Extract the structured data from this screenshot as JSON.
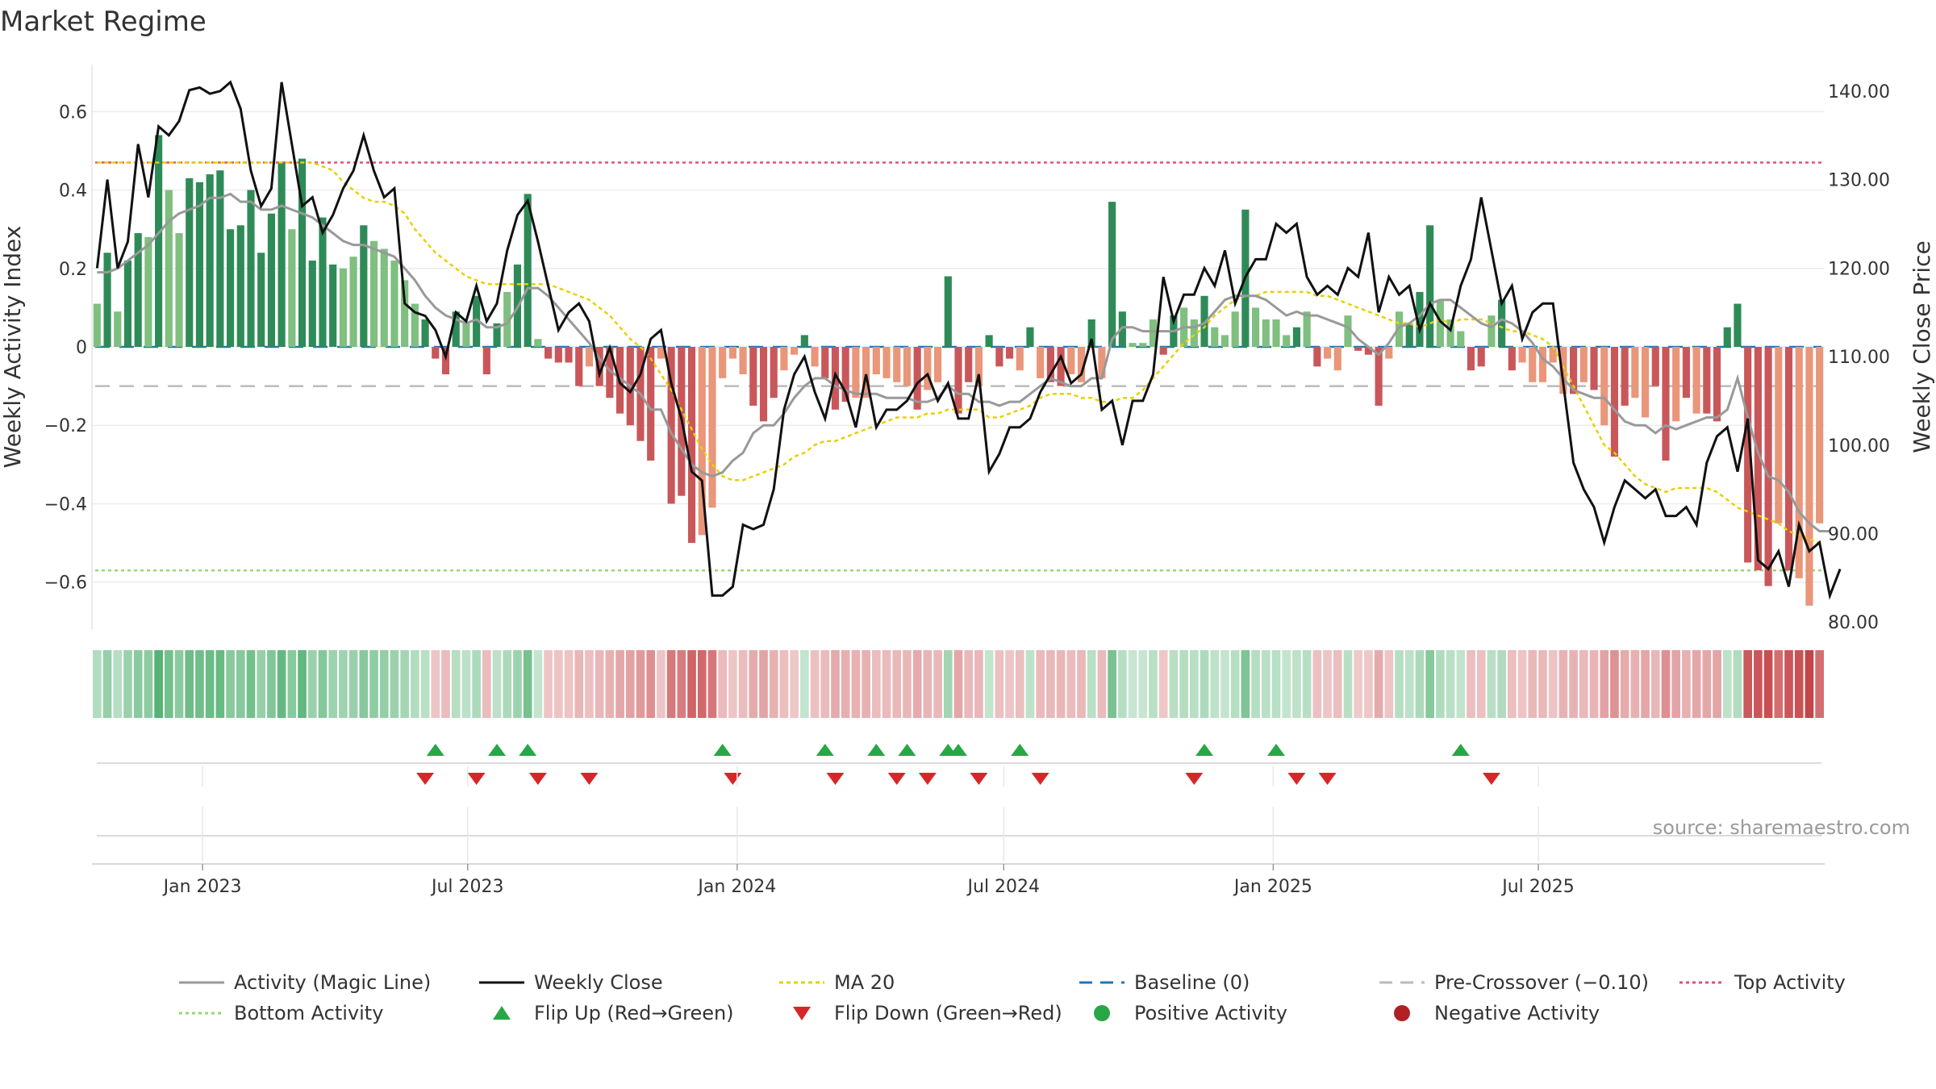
{
  "title": "Market Regime",
  "source_text": "source: sharemaestro.com",
  "left_axis_label": "Weekly Activity Index",
  "right_axis_label": "Weekly Close Price",
  "left_ticks": [
    "0.6",
    "0.4",
    "0.2",
    "0",
    "−0.2",
    "−0.4",
    "−0.6"
  ],
  "right_ticks": [
    "140.00",
    "130.00",
    "120.00",
    "110.00",
    "100.00",
    "90.00",
    "80.00"
  ],
  "x_ticks": [
    "Jan 2023",
    "Jul 2023",
    "Jan 2024",
    "Jul 2024",
    "Jan 2025",
    "Jul 2025"
  ],
  "legend": [
    {
      "label": "Activity (Magic Line)",
      "icon": "gray-line"
    },
    {
      "label": "Weekly Close",
      "icon": "black-line"
    },
    {
      "label": "MA 20",
      "icon": "yellow-dotted-line"
    },
    {
      "label": "Baseline (0)",
      "icon": "blue-dashed-line"
    },
    {
      "label": "Pre-Crossover (−0.10)",
      "icon": "gray-dashed-line"
    },
    {
      "label": "Top Activity",
      "icon": "pink-dotted-line"
    },
    {
      "label": "Bottom Activity",
      "icon": "green-dotted-line"
    },
    {
      "label": "Flip Up (Red→Green)",
      "icon": "green-triangle-up"
    },
    {
      "label": "Flip Down (Green→Red)",
      "icon": "red-triangle-down"
    },
    {
      "label": "Positive Activity",
      "icon": "green-dot"
    },
    {
      "label": "Negative Activity",
      "icon": "red-dot"
    }
  ],
  "chart_data": {
    "type": "bar",
    "title": "Market Regime",
    "xlabel": "",
    "ylabel": "Weekly Activity Index",
    "y2label": "Weekly Close Price",
    "x_start": "2022-10-21",
    "x_step_days": 7,
    "ylim": [
      -0.72,
      0.72
    ],
    "y2lim": [
      79.2,
      143.0
    ],
    "reference_lines": {
      "baseline": 0,
      "pre_crossover": -0.1,
      "top_activity": 0.47,
      "bottom_activity": -0.57
    },
    "colors": {
      "pos_dark": "#2e8b57",
      "pos_light": "#7fbf7f",
      "neg_dark": "#c9575a",
      "neg_light": "#e9967a",
      "magic": "#999999",
      "close": "#111111",
      "ma20": "#e8d000",
      "baseline": "#1f77b4",
      "pre": "#bbbbbb",
      "top": "#e0507a",
      "bottom": "#9bd672"
    },
    "activity": [
      0.11,
      0.24,
      0.09,
      0.22,
      0.29,
      0.28,
      0.54,
      0.4,
      0.29,
      0.43,
      0.42,
      0.44,
      0.45,
      0.3,
      0.31,
      0.4,
      0.24,
      0.34,
      0.47,
      0.3,
      0.48,
      0.22,
      0.33,
      0.21,
      0.2,
      0.23,
      0.31,
      0.27,
      0.25,
      0.22,
      0.17,
      0.11,
      0.07,
      -0.03,
      -0.07,
      0.09,
      0.06,
      0.13,
      -0.07,
      0.06,
      0.14,
      0.21,
      0.39,
      0.02,
      -0.03,
      -0.04,
      -0.04,
      -0.1,
      -0.05,
      -0.1,
      -0.13,
      -0.17,
      -0.2,
      -0.24,
      -0.29,
      -0.03,
      -0.4,
      -0.38,
      -0.5,
      -0.48,
      -0.41,
      -0.08,
      -0.03,
      -0.07,
      -0.15,
      -0.19,
      -0.13,
      -0.06,
      -0.02,
      0.03,
      -0.05,
      -0.08,
      -0.16,
      -0.14,
      -0.13,
      -0.13,
      -0.07,
      -0.08,
      -0.09,
      -0.1,
      -0.16,
      -0.11,
      -0.09,
      0.18,
      -0.17,
      -0.09,
      -0.1,
      0.03,
      -0.05,
      -0.03,
      -0.06,
      0.05,
      -0.08,
      -0.09,
      -0.1,
      -0.07,
      -0.09,
      0.07,
      -0.08,
      0.37,
      0.09,
      0.01,
      0.01,
      0.07,
      -0.02,
      0.08,
      0.1,
      0.07,
      0.13,
      0.05,
      0.03,
      0.09,
      0.35,
      0.1,
      0.07,
      0.07,
      0.03,
      0.05,
      0.09,
      -0.05,
      -0.03,
      -0.06,
      0.08,
      -0.01,
      -0.02,
      -0.15,
      -0.03,
      0.09,
      0.06,
      0.14,
      0.31,
      0.12,
      0.07,
      0.04,
      -0.06,
      -0.05,
      0.08,
      0.12,
      -0.06,
      -0.04,
      -0.09,
      -0.09,
      -0.04,
      -0.12,
      -0.12,
      -0.09,
      -0.11,
      -0.2,
      -0.28,
      -0.15,
      -0.13,
      -0.18,
      -0.1,
      -0.29,
      -0.19,
      -0.13,
      -0.17,
      -0.17,
      -0.19,
      0.05,
      0.11,
      -0.55,
      -0.57,
      -0.61,
      -0.45,
      -0.57,
      -0.59,
      -0.66,
      -0.45
    ],
    "activity_strong": [
      0,
      1,
      0,
      1,
      1,
      0,
      1,
      0,
      0,
      1,
      1,
      1,
      1,
      1,
      1,
      1,
      1,
      1,
      1,
      0,
      1,
      1,
      1,
      1,
      0,
      0,
      1,
      0,
      0,
      0,
      0,
      0,
      1,
      1,
      1,
      1,
      0,
      1,
      1,
      1,
      0,
      1,
      1,
      0,
      1,
      1,
      1,
      1,
      0,
      1,
      1,
      1,
      1,
      1,
      1,
      0,
      1,
      1,
      1,
      0,
      0,
      0,
      0,
      0,
      1,
      1,
      1,
      0,
      0,
      1,
      0,
      1,
      1,
      1,
      0,
      0,
      0,
      0,
      0,
      0,
      1,
      0,
      0,
      1,
      1,
      1,
      0,
      1,
      1,
      1,
      0,
      1,
      0,
      1,
      1,
      0,
      0,
      1,
      0,
      1,
      1,
      0,
      0,
      0,
      1,
      1,
      0,
      0,
      1,
      0,
      0,
      0,
      1,
      0,
      0,
      0,
      0,
      1,
      0,
      1,
      0,
      0,
      0,
      1,
      1,
      1,
      0,
      0,
      1,
      1,
      1,
      0,
      0,
      0,
      1,
      1,
      0,
      1,
      1,
      0,
      0,
      0,
      0,
      0,
      1,
      0,
      1,
      0,
      1,
      1,
      0,
      0,
      1,
      1,
      0,
      1,
      0,
      1,
      1,
      1,
      1,
      1,
      1,
      1,
      0,
      1,
      0,
      0
    ],
    "weekly_close": [
      120.0,
      130.0,
      120.0,
      123.0,
      134.0,
      128.0,
      136.0,
      135.0,
      136.6,
      140.1,
      140.4,
      139.7,
      140.0,
      141.0,
      138.0,
      131.0,
      127.0,
      129.0,
      141.0,
      134.0,
      127.0,
      128.0,
      124.0,
      126.0,
      129.0,
      131.0,
      135.0,
      131.0,
      128.0,
      129.0,
      116.0,
      115.0,
      114.6,
      113.0,
      110.0,
      115.0,
      114.0,
      118.0,
      114.0,
      116.0,
      122.0,
      126.0,
      127.6,
      123.0,
      118.0,
      113.0,
      115.0,
      116.0,
      114.0,
      108.0,
      111.0,
      107.0,
      106.0,
      108.0,
      112.0,
      113.0,
      107.0,
      103.0,
      97.0,
      96.0,
      83.0,
      83.0,
      84.0,
      91.0,
      90.5,
      91.0,
      95.0,
      104.0,
      108.0,
      110.0,
      106.0,
      103.0,
      108.0,
      106.0,
      102.0,
      108.0,
      102.0,
      104.0,
      104.0,
      105.0,
      107.0,
      108.0,
      105.0,
      107.0,
      103.0,
      103.0,
      108.0,
      97.0,
      99.0,
      102.0,
      102.0,
      103.0,
      106.0,
      108.0,
      110.0,
      107.0,
      108.0,
      112.0,
      104.0,
      105.0,
      100.0,
      105.0,
      105.0,
      108.0,
      119.0,
      114.0,
      117.0,
      117.0,
      120.0,
      118.0,
      122.0,
      116.0,
      119.0,
      121.0,
      121.0,
      125.0,
      124.0,
      125.0,
      119.0,
      117.0,
      118.0,
      117.0,
      120.0,
      119.0,
      124.0,
      115.0,
      119.0,
      117.0,
      118.0,
      113.0,
      116.0,
      114.0,
      113.0,
      118.0,
      121.0,
      128.0,
      122.0,
      116.0,
      118.0,
      112.0,
      115.0,
      116.0,
      116.0,
      107.0,
      98.0,
      95.0,
      93.0,
      89.0,
      93.0,
      96.0,
      95.0,
      94.0,
      95.0,
      92.0,
      92.0,
      93.0,
      91.0,
      98.0,
      101.0,
      102.0,
      97.0,
      103.0,
      87.0,
      86.0,
      88.0,
      84.0,
      91.0,
      88.0,
      89.0,
      83.0,
      86.0
    ],
    "magic_line": [
      0.19,
      0.19,
      0.2,
      0.22,
      0.24,
      0.26,
      0.29,
      0.32,
      0.34,
      0.35,
      0.36,
      0.38,
      0.38,
      0.39,
      0.37,
      0.37,
      0.35,
      0.35,
      0.36,
      0.35,
      0.34,
      0.33,
      0.31,
      0.29,
      0.27,
      0.26,
      0.26,
      0.25,
      0.24,
      0.23,
      0.2,
      0.17,
      0.13,
      0.1,
      0.08,
      0.07,
      0.06,
      0.07,
      0.05,
      0.05,
      0.06,
      0.1,
      0.15,
      0.15,
      0.13,
      0.1,
      0.07,
      0.04,
      0.01,
      -0.03,
      -0.06,
      -0.08,
      -0.1,
      -0.12,
      -0.16,
      -0.16,
      -0.22,
      -0.26,
      -0.3,
      -0.32,
      -0.33,
      -0.32,
      -0.29,
      -0.27,
      -0.22,
      -0.2,
      -0.2,
      -0.17,
      -0.13,
      -0.1,
      -0.08,
      -0.08,
      -0.1,
      -0.11,
      -0.12,
      -0.12,
      -0.12,
      -0.13,
      -0.13,
      -0.13,
      -0.14,
      -0.14,
      -0.13,
      -0.1,
      -0.12,
      -0.12,
      -0.14,
      -0.14,
      -0.15,
      -0.14,
      -0.14,
      -0.12,
      -0.1,
      -0.08,
      -0.09,
      -0.1,
      -0.1,
      -0.08,
      -0.08,
      0.02,
      0.05,
      0.05,
      0.04,
      0.04,
      0.04,
      0.04,
      0.05,
      0.05,
      0.06,
      0.09,
      0.12,
      0.13,
      0.13,
      0.13,
      0.12,
      0.1,
      0.08,
      0.09,
      0.08,
      0.08,
      0.07,
      0.06,
      0.05,
      0.02,
      0.0,
      -0.02,
      0.01,
      0.05,
      0.06,
      0.08,
      0.11,
      0.12,
      0.12,
      0.1,
      0.08,
      0.06,
      0.05,
      0.07,
      0.06,
      0.04,
      0.01,
      -0.03,
      -0.05,
      -0.08,
      -0.11,
      -0.12,
      -0.13,
      -0.13,
      -0.16,
      -0.19,
      -0.2,
      -0.2,
      -0.22,
      -0.2,
      -0.21,
      -0.2,
      -0.19,
      -0.18,
      -0.18,
      -0.16,
      -0.08,
      -0.18,
      -0.27,
      -0.33,
      -0.34,
      -0.37,
      -0.42,
      -0.45,
      -0.47,
      -0.47
    ],
    "ma20": [
      0.47,
      0.47,
      0.47,
      0.47,
      0.47,
      0.47,
      0.47,
      0.47,
      0.47,
      0.47,
      0.47,
      0.47,
      0.47,
      0.47,
      0.47,
      0.47,
      0.47,
      0.47,
      0.47,
      0.47,
      0.47,
      0.47,
      0.46,
      0.45,
      0.42,
      0.4,
      0.38,
      0.37,
      0.37,
      0.36,
      0.34,
      0.3,
      0.27,
      0.24,
      0.22,
      0.2,
      0.18,
      0.17,
      0.16,
      0.16,
      0.16,
      0.16,
      0.16,
      0.16,
      0.16,
      0.15,
      0.14,
      0.13,
      0.12,
      0.1,
      0.08,
      0.05,
      0.02,
      0.0,
      -0.03,
      -0.07,
      -0.11,
      -0.16,
      -0.21,
      -0.26,
      -0.3,
      -0.33,
      -0.34,
      -0.34,
      -0.33,
      -0.32,
      -0.31,
      -0.3,
      -0.28,
      -0.27,
      -0.25,
      -0.24,
      -0.24,
      -0.23,
      -0.22,
      -0.21,
      -0.2,
      -0.19,
      -0.18,
      -0.18,
      -0.18,
      -0.17,
      -0.17,
      -0.16,
      -0.16,
      -0.16,
      -0.16,
      -0.18,
      -0.18,
      -0.17,
      -0.16,
      -0.15,
      -0.13,
      -0.12,
      -0.12,
      -0.12,
      -0.13,
      -0.13,
      -0.14,
      -0.14,
      -0.13,
      -0.13,
      -0.11,
      -0.08,
      -0.05,
      -0.02,
      0.01,
      0.03,
      0.05,
      0.08,
      0.1,
      0.12,
      0.13,
      0.13,
      0.14,
      0.14,
      0.14,
      0.14,
      0.14,
      0.13,
      0.13,
      0.12,
      0.11,
      0.1,
      0.09,
      0.08,
      0.07,
      0.06,
      0.06,
      0.05,
      0.06,
      0.07,
      0.06,
      0.07,
      0.07,
      0.07,
      0.06,
      0.05,
      0.04,
      0.04,
      0.03,
      0.02,
      0.0,
      -0.05,
      -0.1,
      -0.15,
      -0.2,
      -0.25,
      -0.27,
      -0.3,
      -0.33,
      -0.35,
      -0.36,
      -0.37,
      -0.36,
      -0.36,
      -0.36,
      -0.36,
      -0.37,
      -0.39,
      -0.41,
      -0.42,
      -0.43,
      -0.44,
      -0.45,
      -0.47,
      -0.48,
      -0.49,
      -0.5
    ],
    "flip_up_weeks": [
      33,
      39,
      42,
      61,
      71,
      76,
      79,
      83,
      84,
      90,
      108,
      115,
      133
    ],
    "flip_down_weeks": [
      32,
      37,
      43,
      48,
      62,
      72,
      78,
      81,
      86,
      92,
      107,
      117,
      120,
      136
    ]
  }
}
